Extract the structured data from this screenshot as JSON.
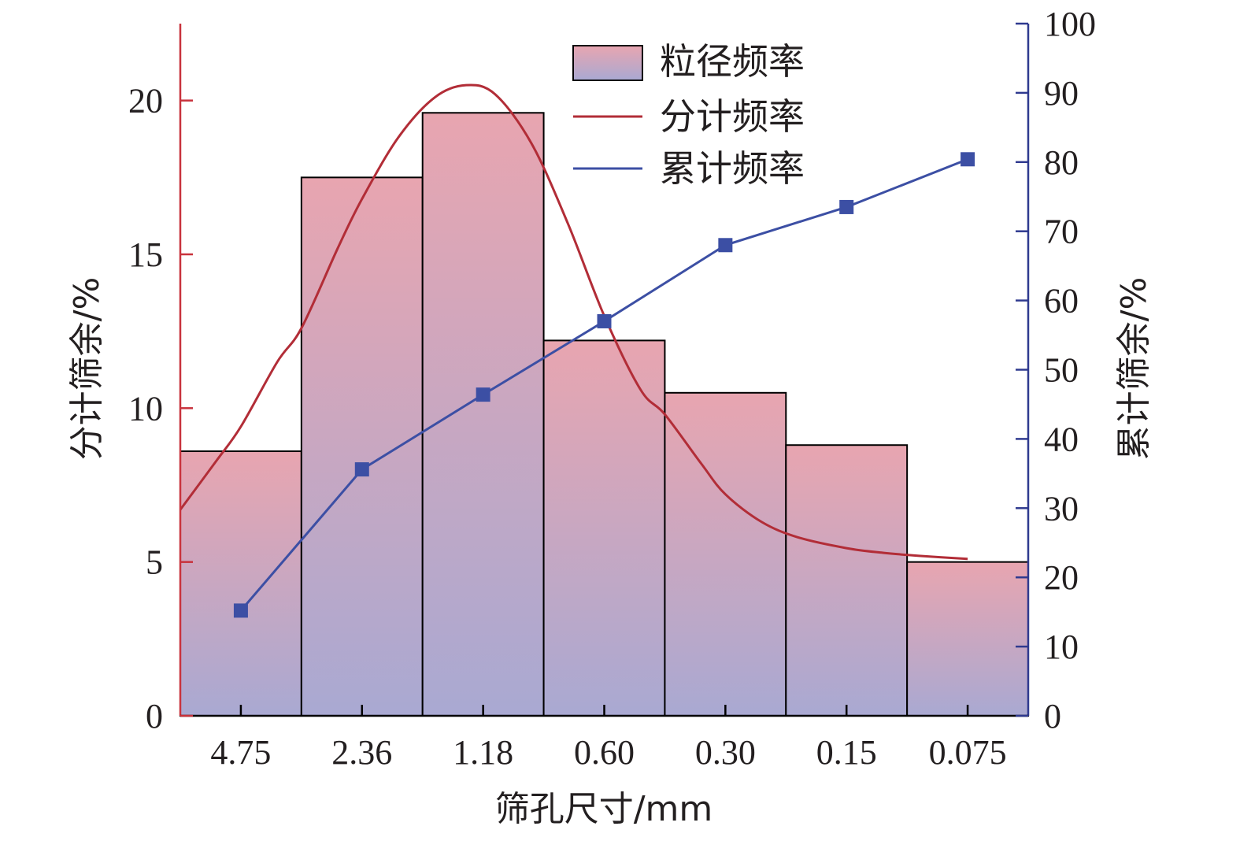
{
  "chart_data": {
    "type": "bar",
    "xlabel": "筛孔尺寸/mm",
    "ylabel_left": "分计筛余/%",
    "ylabel_right": "累计筛余/%",
    "categories": [
      "4.75",
      "2.36",
      "1.18",
      "0.60",
      "0.30",
      "0.15",
      "0.075"
    ],
    "ylim_left": [
      0,
      22.5
    ],
    "ylim_right": [
      0,
      100
    ],
    "yticks_left": [
      0,
      5,
      10,
      15,
      20
    ],
    "yticks_right": [
      0,
      10,
      20,
      30,
      40,
      50,
      60,
      70,
      80,
      90,
      100
    ],
    "grid": false,
    "legend_position": "top-center",
    "series": [
      {
        "name": "粒径频率",
        "type": "bar",
        "axis": "left",
        "values": [
          8.6,
          17.5,
          19.6,
          12.2,
          10.5,
          8.8,
          5.0
        ]
      },
      {
        "name": "分计频率",
        "type": "line",
        "axis": "left",
        "smooth": true,
        "points": [
          [
            -0.5,
            6.7
          ],
          [
            -0.2,
            8.3
          ],
          [
            0.0,
            9.4
          ],
          [
            0.3,
            11.5
          ],
          [
            0.5,
            12.6
          ],
          [
            0.8,
            15.2
          ],
          [
            1.0,
            16.8
          ],
          [
            1.3,
            18.8
          ],
          [
            1.6,
            20.1
          ],
          [
            1.86,
            20.5
          ],
          [
            2.1,
            20.2
          ],
          [
            2.4,
            18.6
          ],
          [
            2.7,
            16.0
          ],
          [
            3.0,
            13.0
          ],
          [
            3.3,
            10.6
          ],
          [
            3.5,
            9.8
          ],
          [
            3.8,
            8.2
          ],
          [
            4.0,
            7.2
          ],
          [
            4.3,
            6.3
          ],
          [
            4.6,
            5.8
          ],
          [
            5.0,
            5.45
          ],
          [
            5.3,
            5.3
          ],
          [
            5.6,
            5.2
          ],
          [
            6.0,
            5.1
          ]
        ]
      },
      {
        "name": "累计频率",
        "type": "line",
        "axis": "right",
        "marker": "square",
        "values": [
          15.2,
          35.6,
          46.4,
          57.0,
          68.0,
          73.5,
          80.4
        ]
      }
    ],
    "colors": {
      "bar_top": "#e8a5b0",
      "bar_bottom": "#a9a9d2",
      "bar_edge": "#000000",
      "smooth_line": "#b22d37",
      "cumulative_line": "#3c4fa4",
      "left_axis": "#c8323c",
      "right_axis": "#2f3a8f"
    }
  }
}
